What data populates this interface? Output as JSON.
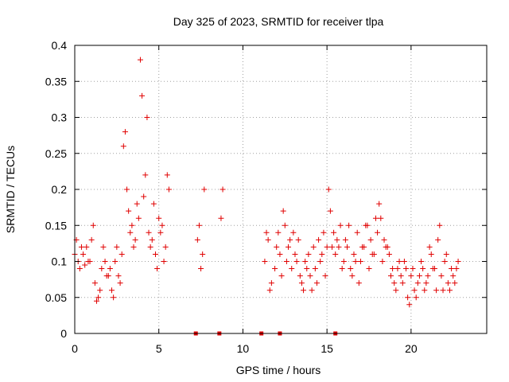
{
  "chart_data": {
    "type": "scatter",
    "title": "Day 325 of 2023, SRMTID for receiver tlpa",
    "xlabel": "GPS time / hours",
    "ylabel": "SRMTID / TECUs",
    "xlim": [
      0,
      24.5
    ],
    "ylim": [
      0,
      0.4
    ],
    "x_ticks": [
      0,
      5,
      10,
      15,
      20
    ],
    "x_tick_labels": [
      "0",
      "5",
      "10",
      "15",
      "20"
    ],
    "y_ticks": [
      0,
      0.05,
      0.1,
      0.15,
      0.2,
      0.25,
      0.3,
      0.35,
      0.4
    ],
    "y_tick_labels": [
      "0",
      "0.05",
      "0.1",
      "0.15",
      "0.2",
      "0.25",
      "0.3",
      "0.35",
      "0.4"
    ],
    "grid": true,
    "marker": "plus",
    "color": "#e00000",
    "zero_markers_x": [
      7.2,
      8.6,
      11.1,
      12.2,
      15.5
    ],
    "series": [
      {
        "name": "SRMTID",
        "x": [
          0.0,
          0.2,
          0.4,
          0.6,
          0.8,
          1.0,
          1.2,
          1.4,
          1.6,
          1.8,
          2.0,
          2.2,
          2.4,
          2.6,
          2.8,
          3.0,
          3.2,
          3.4,
          3.6,
          3.8,
          4.0,
          4.2,
          4.4,
          4.6,
          4.8,
          5.0,
          5.2,
          5.4,
          5.6,
          7.3,
          7.5,
          7.7,
          8.8,
          11.3,
          11.5,
          11.7,
          12.0,
          12.2,
          12.4,
          12.6,
          12.8,
          13.0,
          13.2,
          13.4,
          13.6,
          13.8,
          14.0,
          14.2,
          14.4,
          14.6,
          14.8,
          15.0,
          15.2,
          15.4,
          15.6,
          15.8,
          16.0,
          16.2,
          16.4,
          16.6,
          16.8,
          17.0,
          17.2,
          17.4,
          17.6,
          17.8,
          18.0,
          18.2,
          18.4,
          18.6,
          18.8,
          19.0,
          19.2,
          19.4,
          19.6,
          19.8,
          20.0,
          20.2,
          20.4,
          20.6,
          20.8,
          21.0,
          21.2,
          21.4,
          21.6,
          21.8,
          22.0,
          22.2,
          22.4,
          22.6,
          22.8
        ],
        "y": [
          0.11,
          0.1,
          0.12,
          0.095,
          0.1,
          0.13,
          0.07,
          0.05,
          0.09,
          0.1,
          0.08,
          0.06,
          0.1,
          0.08,
          0.11,
          0.28,
          0.17,
          0.15,
          0.13,
          0.16,
          0.33,
          0.22,
          0.14,
          0.13,
          0.11,
          0.16,
          0.15,
          0.12,
          0.2,
          0.13,
          0.09,
          0.2,
          0.2,
          0.1,
          0.13,
          0.07,
          0.12,
          0.11,
          0.17,
          0.1,
          0.13,
          0.14,
          0.1,
          0.08,
          0.06,
          0.09,
          0.08,
          0.12,
          0.07,
          0.1,
          0.14,
          0.12,
          0.17,
          0.14,
          0.13,
          0.15,
          0.1,
          0.12,
          0.09,
          0.11,
          0.14,
          0.1,
          0.12,
          0.15,
          0.13,
          0.11,
          0.14,
          0.16,
          0.13,
          0.12,
          0.08,
          0.07,
          0.09,
          0.08,
          0.1,
          0.05,
          0.08,
          0.06,
          0.07,
          0.1,
          0.06,
          0.08,
          0.11,
          0.09,
          0.13,
          0.08,
          0.1,
          0.07,
          0.09,
          0.07,
          0.1
        ]
      },
      {
        "name": "SRMTID",
        "x": [
          0.1,
          0.3,
          0.5,
          0.7,
          0.9,
          1.1,
          1.3,
          1.5,
          1.7,
          1.9,
          2.1,
          2.3,
          2.5,
          2.7,
          2.9,
          3.1,
          3.3,
          3.5,
          3.7,
          3.9,
          4.1,
          4.3,
          4.5,
          4.7,
          4.9,
          5.1,
          5.3,
          5.5,
          7.4,
          7.6,
          8.7,
          11.4,
          11.6,
          11.9,
          12.1,
          12.3,
          12.5,
          12.7,
          12.9,
          13.1,
          13.3,
          13.5,
          13.7,
          13.9,
          14.1,
          14.3,
          14.5,
          14.7,
          14.9,
          15.1,
          15.3,
          15.5,
          15.7,
          15.9,
          16.1,
          16.3,
          16.5,
          16.7,
          16.9,
          17.1,
          17.3,
          17.5,
          17.7,
          17.9,
          18.1,
          18.3,
          18.5,
          18.7,
          18.9,
          19.1,
          19.3,
          19.5,
          19.7,
          19.9,
          20.1,
          20.3,
          20.5,
          20.7,
          20.9,
          21.1,
          21.3,
          21.5,
          21.7,
          21.9,
          22.1,
          22.3,
          22.5,
          22.7
        ],
        "y": [
          0.13,
          0.09,
          0.11,
          0.12,
          0.1,
          0.15,
          0.045,
          0.06,
          0.12,
          0.08,
          0.09,
          0.05,
          0.12,
          0.07,
          0.26,
          0.2,
          0.14,
          0.12,
          0.18,
          0.38,
          0.19,
          0.3,
          0.12,
          0.18,
          0.09,
          0.14,
          0.1,
          0.22,
          0.15,
          0.11,
          0.16,
          0.14,
          0.06,
          0.09,
          0.14,
          0.08,
          0.15,
          0.12,
          0.09,
          0.11,
          0.13,
          0.07,
          0.1,
          0.11,
          0.06,
          0.09,
          0.13,
          0.11,
          0.08,
          0.2,
          0.12,
          0.11,
          0.12,
          0.09,
          0.13,
          0.15,
          0.08,
          0.1,
          0.07,
          0.12,
          0.15,
          0.09,
          0.11,
          0.16,
          0.18,
          0.1,
          0.12,
          0.11,
          0.09,
          0.06,
          0.1,
          0.07,
          0.09,
          0.04,
          0.09,
          0.05,
          0.08,
          0.09,
          0.07,
          0.12,
          0.09,
          0.06,
          0.15,
          0.06,
          0.11,
          0.06,
          0.08,
          0.09
        ]
      }
    ]
  }
}
